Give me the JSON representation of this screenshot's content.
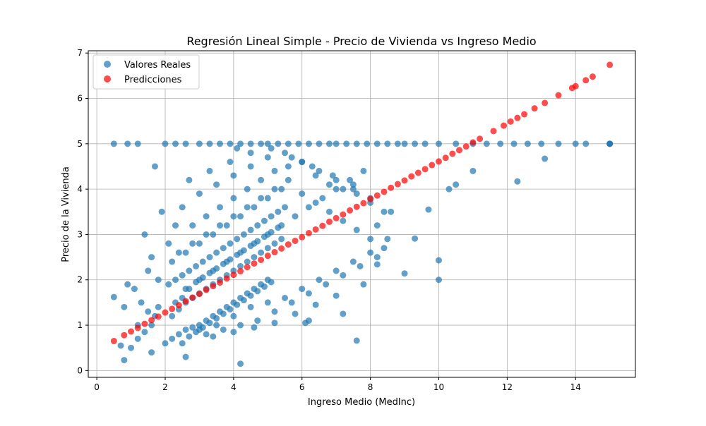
{
  "chart_data": {
    "type": "scatter",
    "title": "Regresión Lineal Simple - Precio de Vivienda vs Ingreso Medio",
    "xlabel": "Ingreso Medio (MedInc)",
    "ylabel": "Precio de la Vivienda",
    "xlim": [
      -0.25,
      15.75
    ],
    "ylim": [
      -0.15,
      7.05
    ],
    "xticks": [
      0,
      2,
      4,
      6,
      8,
      10,
      12,
      14
    ],
    "yticks": [
      0,
      1,
      2,
      3,
      4,
      5,
      6,
      7
    ],
    "grid": true,
    "legend_position": "top-left",
    "series": [
      {
        "name": "Valores Reales",
        "color": "#1f77b4",
        "x": [
          0.5,
          0.9,
          1.2,
          2.0,
          2.3,
          2.6,
          3.0,
          3.3,
          3.6,
          3.9,
          4.2,
          4.5,
          4.8,
          5.0,
          5.3,
          5.6,
          5.9,
          6.2,
          6.5,
          6.8,
          7.0,
          7.3,
          7.6,
          7.9,
          8.2,
          8.5,
          8.8,
          9.0,
          9.3,
          9.6,
          10.0,
          10.5,
          11.0,
          11.4,
          11.8,
          12.2,
          12.6,
          13.0,
          13.5,
          14.0,
          14.3,
          15.0,
          15.0,
          15.0,
          0.5,
          0.7,
          0.8,
          1.0,
          1.2,
          1.4,
          1.6,
          1.7,
          1.8,
          2.0,
          1.1,
          1.3,
          1.5,
          0.9,
          1.6,
          1.7,
          1.4,
          1.9,
          2.1,
          2.3,
          1.8,
          1.5,
          1.2,
          0.8,
          2.2,
          2.4,
          2.6,
          2.8,
          3.0,
          3.2,
          3.4,
          3.6,
          3.8,
          4.0,
          4.2,
          4.4,
          4.6,
          4.8,
          5.0,
          2.5,
          2.7,
          2.9,
          3.1,
          3.3,
          3.5,
          3.7,
          3.9,
          4.1,
          4.3,
          4.5,
          4.7,
          4.9,
          5.1,
          2.2,
          2.4,
          2.6,
          2.8,
          3.0,
          3.2,
          3.4,
          3.6,
          3.8,
          4.0,
          4.2,
          4.4,
          4.6,
          4.8,
          5.0,
          5.2,
          5.4,
          2.3,
          2.5,
          2.7,
          2.9,
          3.1,
          3.3,
          3.5,
          3.7,
          3.9,
          4.1,
          4.3,
          4.5,
          4.7,
          4.9,
          5.1,
          5.3,
          2.1,
          2.3,
          2.5,
          2.7,
          2.9,
          3.1,
          3.3,
          3.5,
          3.7,
          3.9,
          4.1,
          4.3,
          4.5,
          4.7,
          4.9,
          5.1,
          5.3,
          5.5,
          2.2,
          2.6,
          3.0,
          3.4,
          3.8,
          4.2,
          4.6,
          5.0,
          5.4,
          2.4,
          2.8,
          3.2,
          3.6,
          4.0,
          4.4,
          4.8,
          5.2,
          5.6,
          6.0,
          6.4,
          6.8,
          7.2,
          7.6,
          8.0,
          8.4,
          2.6,
          3.0,
          3.4,
          3.8,
          4.2,
          4.6,
          5.0,
          5.4,
          5.8,
          6.2,
          6.6,
          7.0,
          7.4,
          7.8,
          8.2,
          2.8,
          3.2,
          3.6,
          4.0,
          4.4,
          4.8,
          5.2,
          5.6,
          6.0,
          6.4,
          6.8,
          7.2,
          7.6,
          8.0,
          8.4,
          3.0,
          3.5,
          4.0,
          4.5,
          5.0,
          5.5,
          6.0,
          6.5,
          7.0,
          7.5,
          8.0,
          8.5,
          2.5,
          3.0,
          3.5,
          4.0,
          4.5,
          5.0,
          5.5,
          6.0,
          6.5,
          7.0,
          7.5,
          8.0,
          8.6,
          3.2,
          3.7,
          4.2,
          4.7,
          5.2,
          5.7,
          6.2,
          6.7,
          7.2,
          7.7,
          8.2,
          2.7,
          3.3,
          3.9,
          4.5,
          5.1,
          5.7,
          6.3,
          6.9,
          7.5,
          3.4,
          4.0,
          4.6,
          5.2,
          5.8,
          6.4,
          7.0,
          7.8,
          4.2,
          6.1,
          7.2,
          7.6,
          8.2,
          9.0,
          9.3,
          9.7,
          10.0,
          10.0,
          10.3,
          10.5,
          11.0,
          12.3,
          13.1,
          6.2,
          4.1,
          2.6,
          1.6
        ],
        "y": [
          5.0,
          5.0,
          5.0,
          5.0,
          5.0,
          5.0,
          5.0,
          5.0,
          5.0,
          5.0,
          5.0,
          5.0,
          5.0,
          5.0,
          5.0,
          5.0,
          5.0,
          5.0,
          5.0,
          5.0,
          5.0,
          5.0,
          5.0,
          5.0,
          5.0,
          5.0,
          5.0,
          5.0,
          5.0,
          5.0,
          5.0,
          5.0,
          5.0,
          5.0,
          5.0,
          5.0,
          5.0,
          5.0,
          5.0,
          5.0,
          5.0,
          5.0,
          5.0,
          5.0,
          1.62,
          0.55,
          0.23,
          0.5,
          0.7,
          0.85,
          1.0,
          1.2,
          1.4,
          0.6,
          1.8,
          1.5,
          2.2,
          1.9,
          2.5,
          4.5,
          3.0,
          3.5,
          2.8,
          3.2,
          2.0,
          1.3,
          1.0,
          1.4,
          0.7,
          0.8,
          0.9,
          0.95,
          1.0,
          1.1,
          1.2,
          1.3,
          1.4,
          1.5,
          1.6,
          1.7,
          1.8,
          1.9,
          2.0,
          0.6,
          0.75,
          0.85,
          0.95,
          1.05,
          1.15,
          1.25,
          1.35,
          1.45,
          1.55,
          1.65,
          1.75,
          1.85,
          1.95,
          1.2,
          1.35,
          1.5,
          1.6,
          1.7,
          1.8,
          1.9,
          2.0,
          2.1,
          2.2,
          2.3,
          2.4,
          2.5,
          2.6,
          2.7,
          2.8,
          2.9,
          1.5,
          1.6,
          1.8,
          1.95,
          2.05,
          2.15,
          2.25,
          2.35,
          2.45,
          2.55,
          2.65,
          2.75,
          2.85,
          2.95,
          3.05,
          3.15,
          1.9,
          2.0,
          2.1,
          2.2,
          2.3,
          2.4,
          2.5,
          2.6,
          2.7,
          2.8,
          2.9,
          3.0,
          3.1,
          3.2,
          3.3,
          3.4,
          3.5,
          3.6,
          2.4,
          2.6,
          2.8,
          3.0,
          3.2,
          3.4,
          3.6,
          3.8,
          4.0,
          2.6,
          2.8,
          3.0,
          3.2,
          3.4,
          3.6,
          3.8,
          4.0,
          4.2,
          3.9,
          3.7,
          3.5,
          3.3,
          3.1,
          2.9,
          2.7,
          1.8,
          2.0,
          2.2,
          2.4,
          2.6,
          2.8,
          3.0,
          3.2,
          3.4,
          3.6,
          3.8,
          4.0,
          4.2,
          4.4,
          3.2,
          3.2,
          3.4,
          3.6,
          3.8,
          4.0,
          4.2,
          4.4,
          4.5,
          4.6,
          4.3,
          4.1,
          4.0,
          3.9,
          3.7,
          3.5,
          0.9,
          1.0,
          1.2,
          1.4,
          1.5,
          1.6,
          1.8,
          2.0,
          2.2,
          2.4,
          2.6,
          2.9,
          3.6,
          3.9,
          4.1,
          4.3,
          4.5,
          4.7,
          4.8,
          4.6,
          4.4,
          4.2,
          4.0,
          3.8,
          3.5,
          0.8,
          0.9,
          1.0,
          1.1,
          1.3,
          1.5,
          1.7,
          1.9,
          2.1,
          2.3,
          2.5,
          4.2,
          4.4,
          4.6,
          4.8,
          4.9,
          4.7,
          4.5,
          4.3,
          4.1,
          0.75,
          0.85,
          0.95,
          1.05,
          1.25,
          1.45,
          1.65,
          1.9,
          0.15,
          1.05,
          1.25,
          0.66,
          2.34,
          2.14,
          2.91,
          3.55,
          2.43,
          2.0,
          4.0,
          4.1,
          4.4,
          4.17,
          4.67,
          1.1,
          4.9,
          0.3,
          0.4
        ]
      },
      {
        "name": "Predicciones",
        "color": "#ff0000",
        "x": [
          0.5,
          0.8,
          1.0,
          1.2,
          1.4,
          1.6,
          1.8,
          2.0,
          2.2,
          2.4,
          2.6,
          2.8,
          3.0,
          3.2,
          3.4,
          3.6,
          3.8,
          4.0,
          4.2,
          4.4,
          4.6,
          4.8,
          5.0,
          5.2,
          5.4,
          5.6,
          5.8,
          6.0,
          6.2,
          6.4,
          6.6,
          6.8,
          7.0,
          7.2,
          7.4,
          7.6,
          7.8,
          8.0,
          8.2,
          8.4,
          8.6,
          8.8,
          9.0,
          9.2,
          9.4,
          9.6,
          9.8,
          10.0,
          10.2,
          10.4,
          10.6,
          10.8,
          11.0,
          11.2,
          11.6,
          11.9,
          12.1,
          12.3,
          12.5,
          12.8,
          13.1,
          13.5,
          13.9,
          14.0,
          14.3,
          14.5,
          15.0
        ],
        "y": [
          0.65,
          0.78,
          0.86,
          0.94,
          1.03,
          1.11,
          1.19,
          1.28,
          1.36,
          1.44,
          1.53,
          1.61,
          1.69,
          1.78,
          1.86,
          1.94,
          2.03,
          2.11,
          2.19,
          2.28,
          2.36,
          2.44,
          2.53,
          2.61,
          2.69,
          2.78,
          2.86,
          2.94,
          3.03,
          3.11,
          3.19,
          3.28,
          3.36,
          3.44,
          3.53,
          3.61,
          3.69,
          3.78,
          3.86,
          3.94,
          4.03,
          4.11,
          4.19,
          4.28,
          4.36,
          4.44,
          4.53,
          4.61,
          4.69,
          4.78,
          4.86,
          4.94,
          5.03,
          5.11,
          5.28,
          5.4,
          5.49,
          5.57,
          5.65,
          5.78,
          5.9,
          6.07,
          6.23,
          6.27,
          6.4,
          6.48,
          6.74
        ]
      }
    ]
  }
}
